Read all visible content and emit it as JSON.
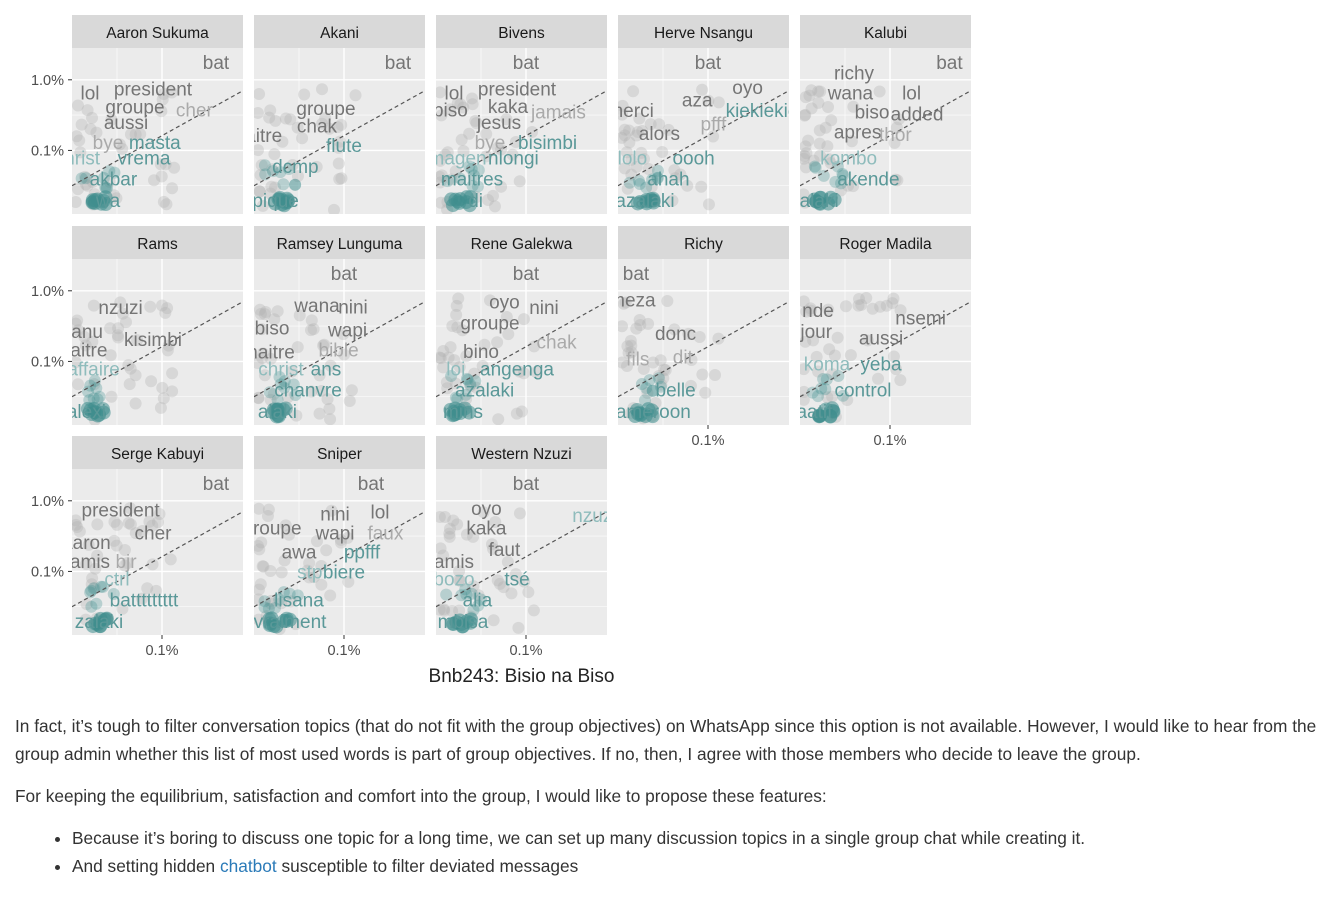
{
  "chart_data": {
    "type": "scatter",
    "facet_layout": {
      "columns": 5,
      "rows": 3
    },
    "y_tick_labels": [
      "1.0%",
      "0.1%"
    ],
    "y_ticks_log": [
      -2,
      -3
    ],
    "x_tick_labels": [
      "0.1%"
    ],
    "x_tick_log": -3,
    "x_range_log": [
      -3.5,
      -2.55
    ],
    "y_range_log": [
      -3.9,
      -1.55
    ],
    "scale": "log",
    "reference_line": "dashed diagonal y = x",
    "grid": true,
    "colors": {
      "panel": "#ebebeb",
      "strip": "#d9d9d9",
      "gridline": "#ffffff",
      "point": "#b3b3b3",
      "text_gray": "#757575",
      "text_gray_light": "#aaaaaa",
      "text_teal": "#5a9898",
      "text_teal_light": "#8fbcbc",
      "blob": "#3f8e8e",
      "diagonal": "#555555"
    },
    "panels": [
      {
        "name": "Aaron Sukuma",
        "words": [
          {
            "t": "bat",
            "x": -2.7,
            "y": -1.75,
            "c": "gray"
          },
          {
            "t": "lol",
            "x": -3.4,
            "y": -2.18,
            "c": "gray"
          },
          {
            "t": "president",
            "x": -3.05,
            "y": -2.12,
            "c": "gray"
          },
          {
            "t": "groupe",
            "x": -3.15,
            "y": -2.38,
            "c": "gray"
          },
          {
            "t": "cher",
            "x": -2.82,
            "y": -2.42,
            "c": "gray_light"
          },
          {
            "t": "aussi",
            "x": -3.2,
            "y": -2.6,
            "c": "gray"
          },
          {
            "t": "bye",
            "x": -3.3,
            "y": -2.88,
            "c": "gray_light"
          },
          {
            "t": "masta",
            "x": -3.04,
            "y": -2.88,
            "c": "teal"
          },
          {
            "t": "christ",
            "x": -3.47,
            "y": -3.1,
            "c": "teal_light"
          },
          {
            "t": "vrema",
            "x": -3.1,
            "y": -3.1,
            "c": "teal"
          },
          {
            "t": "akbar",
            "x": -3.27,
            "y": -3.4,
            "c": "teal"
          },
          {
            "t": "wa",
            "x": -3.3,
            "y": -3.7,
            "c": "teal"
          }
        ]
      },
      {
        "name": "Akani",
        "words": [
          {
            "t": "bat",
            "x": -2.7,
            "y": -1.75,
            "c": "gray"
          },
          {
            "t": "groupe",
            "x": -3.1,
            "y": -2.4,
            "c": "gray"
          },
          {
            "t": "chak",
            "x": -3.15,
            "y": -2.65,
            "c": "gray"
          },
          {
            "t": "maitre",
            "x": -3.49,
            "y": -2.78,
            "c": "gray"
          },
          {
            "t": "flute",
            "x": -3.0,
            "y": -2.92,
            "c": "teal"
          },
          {
            "t": "dcmp",
            "x": -3.27,
            "y": -3.22,
            "c": "teal"
          },
          {
            "t": "pique",
            "x": -3.38,
            "y": -3.7,
            "c": "teal"
          }
        ]
      },
      {
        "name": "Bivens",
        "words": [
          {
            "t": "bat",
            "x": -3.0,
            "y": -1.75,
            "c": "gray"
          },
          {
            "t": "lol",
            "x": -3.4,
            "y": -2.18,
            "c": "gray"
          },
          {
            "t": "president",
            "x": -3.05,
            "y": -2.12,
            "c": "gray"
          },
          {
            "t": "biso",
            "x": -3.42,
            "y": -2.42,
            "c": "gray"
          },
          {
            "t": "kaka",
            "x": -3.1,
            "y": -2.37,
            "c": "gray"
          },
          {
            "t": "jamais",
            "x": -2.82,
            "y": -2.45,
            "c": "gray_light"
          },
          {
            "t": "jesus",
            "x": -3.15,
            "y": -2.6,
            "c": "gray"
          },
          {
            "t": "bye",
            "x": -3.2,
            "y": -2.88,
            "c": "gray_light"
          },
          {
            "t": "bisimbi",
            "x": -2.88,
            "y": -2.88,
            "c": "teal"
          },
          {
            "t": "magen",
            "x": -3.38,
            "y": -3.1,
            "c": "teal_light"
          },
          {
            "t": "nlongi",
            "x": -3.07,
            "y": -3.1,
            "c": "teal"
          },
          {
            "t": "maitres",
            "x": -3.3,
            "y": -3.4,
            "c": "teal"
          },
          {
            "t": "di",
            "x": -3.28,
            "y": -3.7,
            "c": "teal"
          }
        ]
      },
      {
        "name": "Herve Nsangu",
        "words": [
          {
            "t": "bat",
            "x": -3.0,
            "y": -1.75,
            "c": "gray"
          },
          {
            "t": "oyo",
            "x": -2.78,
            "y": -2.1,
            "c": "gray"
          },
          {
            "t": "aza",
            "x": -3.06,
            "y": -2.28,
            "c": "gray"
          },
          {
            "t": "merci",
            "x": -3.43,
            "y": -2.43,
            "c": "gray"
          },
          {
            "t": "kiekiekie",
            "x": -2.7,
            "y": -2.43,
            "c": "teal"
          },
          {
            "t": "pfff",
            "x": -2.97,
            "y": -2.62,
            "c": "gray_light"
          },
          {
            "t": "alors",
            "x": -3.27,
            "y": -2.75,
            "c": "gray"
          },
          {
            "t": "lolo",
            "x": -3.42,
            "y": -3.1,
            "c": "teal_light"
          },
          {
            "t": "oooh",
            "x": -3.08,
            "y": -3.1,
            "c": "teal"
          },
          {
            "t": "ahah",
            "x": -3.22,
            "y": -3.4,
            "c": "teal"
          },
          {
            "t": "azalaki",
            "x": -3.35,
            "y": -3.7,
            "c": "teal"
          }
        ]
      },
      {
        "name": "Kalubi",
        "words": [
          {
            "t": "bat",
            "x": -2.67,
            "y": -1.75,
            "c": "gray"
          },
          {
            "t": "richy",
            "x": -3.2,
            "y": -1.9,
            "c": "gray"
          },
          {
            "t": "wana",
            "x": -3.22,
            "y": -2.18,
            "c": "gray"
          },
          {
            "t": "lol",
            "x": -2.88,
            "y": -2.18,
            "c": "gray"
          },
          {
            "t": "biso",
            "x": -3.1,
            "y": -2.45,
            "c": "gray"
          },
          {
            "t": "added",
            "x": -2.85,
            "y": -2.48,
            "c": "gray"
          },
          {
            "t": "apres",
            "x": -3.18,
            "y": -2.73,
            "c": "gray"
          },
          {
            "t": "thor",
            "x": -2.97,
            "y": -2.77,
            "c": "gray_light"
          },
          {
            "t": "kombo",
            "x": -3.23,
            "y": -3.1,
            "c": "teal_light"
          },
          {
            "t": "akende",
            "x": -3.12,
            "y": -3.4,
            "c": "teal"
          },
          {
            "t": "zalaki",
            "x": -3.42,
            "y": -3.7,
            "c": "teal"
          }
        ]
      },
      {
        "name": "Rams",
        "words": [
          {
            "t": "nzuzi",
            "x": -3.23,
            "y": -2.23,
            "c": "gray"
          },
          {
            "t": "manu",
            "x": -3.46,
            "y": -2.57,
            "c": "gray"
          },
          {
            "t": "kisimbi",
            "x": -3.05,
            "y": -2.68,
            "c": "gray"
          },
          {
            "t": "maitre",
            "x": -3.45,
            "y": -2.83,
            "c": "gray"
          },
          {
            "t": "affaire",
            "x": -3.38,
            "y": -3.1,
            "c": "teal_light"
          },
          {
            "t": "alexi",
            "x": -3.42,
            "y": -3.7,
            "c": "teal"
          }
        ]
      },
      {
        "name": "Ramsey Lunguma",
        "words": [
          {
            "t": "bat",
            "x": -3.0,
            "y": -1.75,
            "c": "gray"
          },
          {
            "t": "wana",
            "x": -3.15,
            "y": -2.2,
            "c": "gray"
          },
          {
            "t": "nini",
            "x": -2.95,
            "y": -2.22,
            "c": "gray"
          },
          {
            "t": "biso",
            "x": -3.4,
            "y": -2.52,
            "c": "gray"
          },
          {
            "t": "wapi",
            "x": -2.98,
            "y": -2.55,
            "c": "gray"
          },
          {
            "t": "bible",
            "x": -3.03,
            "y": -2.83,
            "c": "gray_light"
          },
          {
            "t": "maitre",
            "x": -3.42,
            "y": -2.86,
            "c": "gray"
          },
          {
            "t": "christ",
            "x": -3.35,
            "y": -3.1,
            "c": "teal_light"
          },
          {
            "t": "ans",
            "x": -3.1,
            "y": -3.1,
            "c": "teal"
          },
          {
            "t": "chanvre",
            "x": -3.2,
            "y": -3.4,
            "c": "teal"
          },
          {
            "t": "alaki",
            "x": -3.37,
            "y": -3.7,
            "c": "teal"
          }
        ]
      },
      {
        "name": "Rene Galekwa",
        "words": [
          {
            "t": "bat",
            "x": -3.0,
            "y": -1.75,
            "c": "gray"
          },
          {
            "t": "oyo",
            "x": -3.12,
            "y": -2.15,
            "c": "gray"
          },
          {
            "t": "nini",
            "x": -2.9,
            "y": -2.23,
            "c": "gray"
          },
          {
            "t": "groupe",
            "x": -3.2,
            "y": -2.45,
            "c": "gray"
          },
          {
            "t": "chak",
            "x": -2.83,
            "y": -2.72,
            "c": "gray_light"
          },
          {
            "t": "bino",
            "x": -3.25,
            "y": -2.85,
            "c": "gray"
          },
          {
            "t": "loi",
            "x": -3.39,
            "y": -3.1,
            "c": "teal_light"
          },
          {
            "t": "angenga",
            "x": -3.05,
            "y": -3.1,
            "c": "teal"
          },
          {
            "t": "azalaki",
            "x": -3.23,
            "y": -3.4,
            "c": "teal"
          },
          {
            "t": "mins",
            "x": -3.35,
            "y": -3.7,
            "c": "teal"
          }
        ]
      },
      {
        "name": "Richy",
        "words": [
          {
            "t": "bat",
            "x": -3.4,
            "y": -1.75,
            "c": "gray"
          },
          {
            "t": "meza",
            "x": -3.42,
            "y": -2.12,
            "c": "gray"
          },
          {
            "t": "donc",
            "x": -3.18,
            "y": -2.6,
            "c": "gray"
          },
          {
            "t": "fils",
            "x": -3.39,
            "y": -2.96,
            "c": "gray_light"
          },
          {
            "t": "dit",
            "x": -3.14,
            "y": -2.93,
            "c": "gray_light"
          },
          {
            "t": "belle",
            "x": -3.18,
            "y": -3.4,
            "c": "teal"
          },
          {
            "t": "cameroon",
            "x": -3.33,
            "y": -3.7,
            "c": "teal"
          }
        ]
      },
      {
        "name": "Roger Madila",
        "words": [
          {
            "t": "nde",
            "x": -3.4,
            "y": -2.27,
            "c": "gray"
          },
          {
            "t": "nsemi",
            "x": -2.83,
            "y": -2.38,
            "c": "gray"
          },
          {
            "t": "jour",
            "x": -3.41,
            "y": -2.57,
            "c": "gray"
          },
          {
            "t": "aussi",
            "x": -3.05,
            "y": -2.66,
            "c": "gray"
          },
          {
            "t": "koma",
            "x": -3.35,
            "y": -3.03,
            "c": "teal_light"
          },
          {
            "t": "yeba",
            "x": -3.05,
            "y": -3.03,
            "c": "teal"
          },
          {
            "t": "control",
            "x": -3.15,
            "y": -3.4,
            "c": "teal"
          },
          {
            "t": "aatif",
            "x": -3.42,
            "y": -3.7,
            "c": "teal"
          }
        ]
      },
      {
        "name": "Serge Kabuyi",
        "words": [
          {
            "t": "bat",
            "x": -2.7,
            "y": -1.75,
            "c": "gray"
          },
          {
            "t": "president",
            "x": -3.23,
            "y": -2.12,
            "c": "gray"
          },
          {
            "t": "cher",
            "x": -3.05,
            "y": -2.45,
            "c": "gray"
          },
          {
            "t": "aaron",
            "x": -3.42,
            "y": -2.58,
            "c": "gray"
          },
          {
            "t": "amis",
            "x": -3.4,
            "y": -2.85,
            "c": "gray"
          },
          {
            "t": "bjr",
            "x": -3.2,
            "y": -2.85,
            "c": "gray_light"
          },
          {
            "t": "ctrl",
            "x": -3.25,
            "y": -3.1,
            "c": "teal_light"
          },
          {
            "t": "battttttttt",
            "x": -3.1,
            "y": -3.4,
            "c": "teal"
          },
          {
            "t": "zalaki",
            "x": -3.35,
            "y": -3.7,
            "c": "teal"
          }
        ]
      },
      {
        "name": "Sniper",
        "words": [
          {
            "t": "bat",
            "x": -2.85,
            "y": -1.75,
            "c": "gray"
          },
          {
            "t": "nini",
            "x": -3.05,
            "y": -2.18,
            "c": "gray"
          },
          {
            "t": "lol",
            "x": -2.8,
            "y": -2.15,
            "c": "gray"
          },
          {
            "t": "groupe",
            "x": -3.4,
            "y": -2.38,
            "c": "gray"
          },
          {
            "t": "wapi",
            "x": -3.05,
            "y": -2.45,
            "c": "gray"
          },
          {
            "t": "faux",
            "x": -2.77,
            "y": -2.45,
            "c": "gray_light"
          },
          {
            "t": "awa",
            "x": -3.25,
            "y": -2.72,
            "c": "gray"
          },
          {
            "t": "ppfff",
            "x": -2.9,
            "y": -2.72,
            "c": "teal"
          },
          {
            "t": "stp",
            "x": -3.19,
            "y": -3.0,
            "c": "teal_light"
          },
          {
            "t": "biere",
            "x": -3.0,
            "y": -3.0,
            "c": "teal"
          },
          {
            "t": "lisana",
            "x": -3.25,
            "y": -3.4,
            "c": "teal"
          },
          {
            "t": "vraiment",
            "x": -3.3,
            "y": -3.7,
            "c": "teal"
          }
        ]
      },
      {
        "name": "Western Nzuzi",
        "words": [
          {
            "t": "bat",
            "x": -3.0,
            "y": -1.75,
            "c": "gray"
          },
          {
            "t": "oyo",
            "x": -3.22,
            "y": -2.1,
            "c": "gray"
          },
          {
            "t": "nzuzi",
            "x": -2.62,
            "y": -2.2,
            "c": "teal_light"
          },
          {
            "t": "kaka",
            "x": -3.22,
            "y": -2.38,
            "c": "gray"
          },
          {
            "t": "faut",
            "x": -3.12,
            "y": -2.68,
            "c": "gray"
          },
          {
            "t": "amis",
            "x": -3.4,
            "y": -2.85,
            "c": "gray"
          },
          {
            "t": "bozo",
            "x": -3.4,
            "y": -3.1,
            "c": "teal_light"
          },
          {
            "t": "tsé",
            "x": -3.05,
            "y": -3.1,
            "c": "teal"
          },
          {
            "t": "alia",
            "x": -3.27,
            "y": -3.4,
            "c": "teal"
          },
          {
            "t": "mbisa",
            "x": -3.35,
            "y": -3.7,
            "c": "teal"
          }
        ]
      }
    ]
  },
  "caption": "Bnb243: Bisio na Biso",
  "article": {
    "paragraph1": "In fact, it’s tough to filter conversation topics (that do not fit with the group objectives) on WhatsApp since this option is not available. However, I would like to hear from the group admin whether this list of most used words is part of group objectives. If no, then, I agree with those members who decide to leave the group.",
    "paragraph2": "For keeping the equilibrium, satisfaction and comfort into the group, I would like to propose these features:",
    "bullet1": "Because it’s boring to discuss one topic for a long time, we can set up many discussion topics in a single group chat while creating it.",
    "bullet2_before": "And setting hidden ",
    "bullet2_link": "chatbot",
    "bullet2_after": " susceptible to filter deviated messages"
  }
}
